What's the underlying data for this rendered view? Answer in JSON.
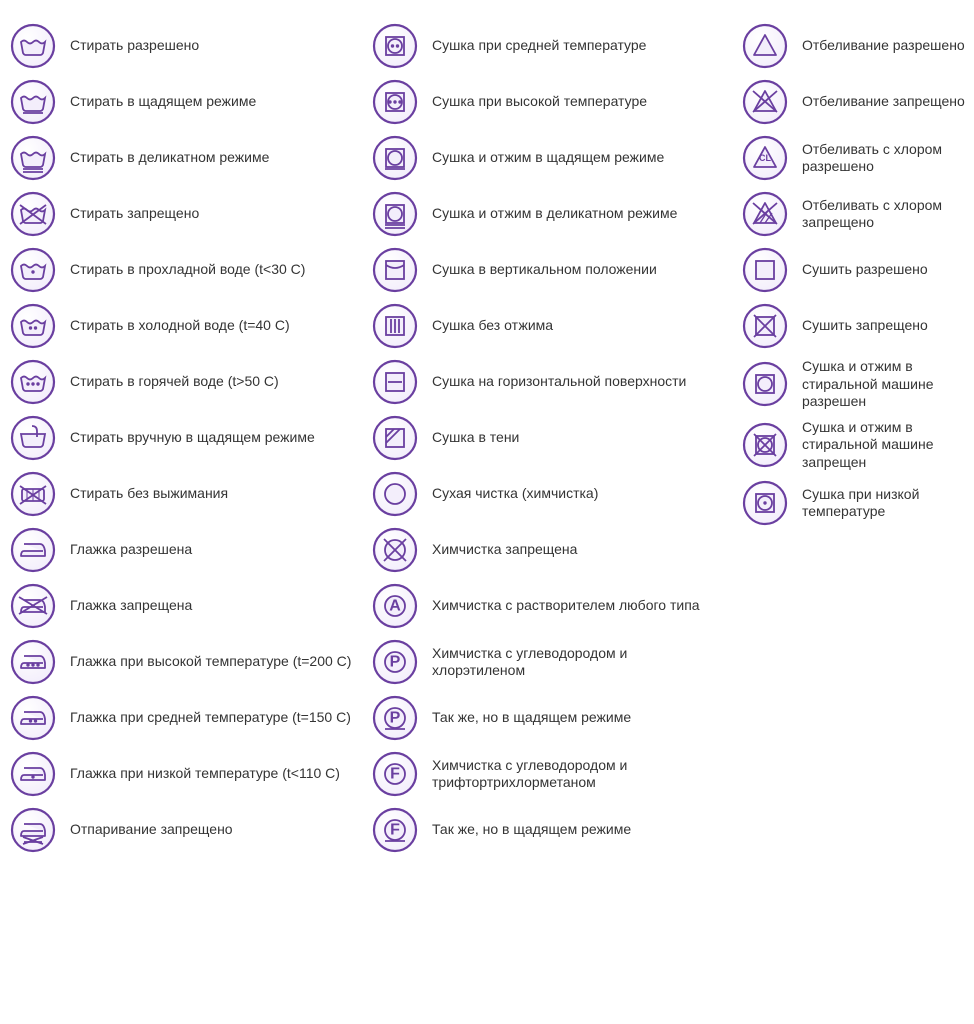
{
  "style": {
    "ring_stroke": "#6a3fa0",
    "ring_stroke_width": 2.2,
    "icon_stroke": "#6a3fa0",
    "icon_stroke_width": 1.8,
    "icon_fill": "#f3eefb",
    "background_color": "#ffffff",
    "label_color": "#343434",
    "label_fontsize": 14
  },
  "columns": [
    {
      "items": [
        {
          "icon": "wash",
          "label": "Стирать разрешено"
        },
        {
          "icon": "wash-gentle",
          "label": "Стирать в щадящем режиме"
        },
        {
          "icon": "wash-delicate",
          "label": "Стирать в деликатном режиме"
        },
        {
          "icon": "wash-no",
          "label": "Стирать запрещено"
        },
        {
          "icon": "wash-30",
          "label": "Стирать в прохладной воде (t<30 C)"
        },
        {
          "icon": "wash-40",
          "label": "Стирать в холодной воде (t=40 C)"
        },
        {
          "icon": "wash-50",
          "label": "Стирать в горячей воде (t>50 C)"
        },
        {
          "icon": "wash-hand",
          "label": "Стирать вручную в щадящем режиме"
        },
        {
          "icon": "wash-no-wring",
          "label": "Стирать без выжимания"
        },
        {
          "icon": "iron",
          "label": "Глажка разрешена"
        },
        {
          "icon": "iron-no",
          "label": "Глажка запрещена"
        },
        {
          "icon": "iron-3",
          "label": "Глажка при высокой температуре (t=200 C)"
        },
        {
          "icon": "iron-2",
          "label": "Глажка при средней температуре (t=150 C)"
        },
        {
          "icon": "iron-1",
          "label": "Глажка при низкой температуре (t<110 C)"
        },
        {
          "icon": "iron-no-steam",
          "label": "Отпаривание запрещено"
        }
      ]
    },
    {
      "items": [
        {
          "icon": "tumble-2",
          "label": "Сушка при средней температуре"
        },
        {
          "icon": "tumble-3",
          "label": "Сушка при высокой температуре"
        },
        {
          "icon": "tumble-gentle",
          "label": "Сушка и отжим в щадящем режиме"
        },
        {
          "icon": "tumble-delicate",
          "label": "Сушка и отжим в деликатном режиме"
        },
        {
          "icon": "dry-hang",
          "label": "Сушка в вертикальном положении"
        },
        {
          "icon": "dry-drip",
          "label": "Сушка без отжима"
        },
        {
          "icon": "dry-flat",
          "label": "Сушка на горизонтальной поверхности"
        },
        {
          "icon": "dry-shade",
          "label": "Сушка в тени"
        },
        {
          "icon": "circle",
          "label": "Сухая чистка (химчистка)"
        },
        {
          "icon": "circle-no",
          "label": "Химчистка запрещена"
        },
        {
          "icon": "circle-A",
          "label": "Химчистка с растворителем любого типа"
        },
        {
          "icon": "circle-P",
          "label": "Химчистка с углеводородом и хлорэтиленом"
        },
        {
          "icon": "circle-P-gentle",
          "label": "Так же, но в щадящем режиме"
        },
        {
          "icon": "circle-F",
          "label": "Химчистка с углеводородом и трифтортрихлорметаном"
        },
        {
          "icon": "circle-F-gentle",
          "label": "Так же, но в щадящем режиме"
        }
      ]
    },
    {
      "items": [
        {
          "icon": "bleach",
          "label": "Отбеливание разрешено"
        },
        {
          "icon": "bleach-no",
          "label": "Отбеливание запрещено"
        },
        {
          "icon": "bleach-cl",
          "label": "Отбеливать с хлором разрешено"
        },
        {
          "icon": "bleach-cl-no",
          "label": "Отбеливать с хлором запрещено"
        },
        {
          "icon": "square",
          "label": "Сушить разрешено"
        },
        {
          "icon": "square-no",
          "label": "Сушить запрещено"
        },
        {
          "icon": "tumble",
          "label": "Сушка и отжим в стиральной машине разрешен"
        },
        {
          "icon": "tumble-no",
          "label": "Сушка и отжим в стиральной машине запрещен"
        },
        {
          "icon": "tumble-1",
          "label": "Сушка при низкой температуре"
        }
      ]
    }
  ]
}
